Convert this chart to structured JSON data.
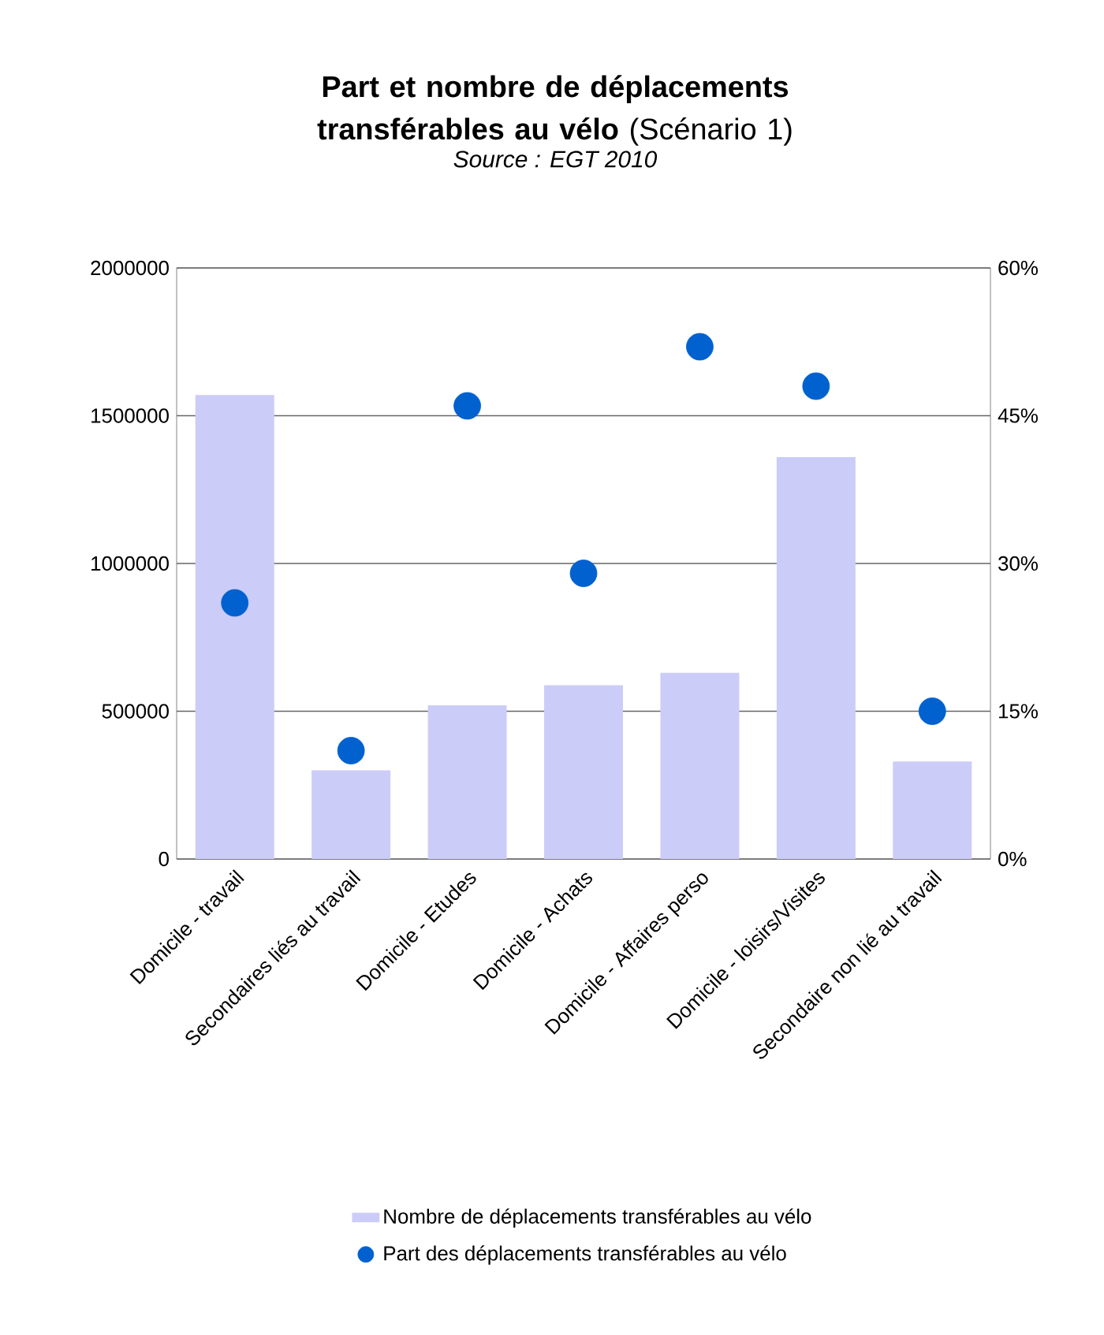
{
  "chart_data": {
    "type": "bar",
    "title": "**Part et nombre de déplacements transférables au vélo** (Scénario 1)",
    "subtitle": "Source : EGT 2010",
    "categories": [
      "Domicile - travail",
      "Secondaires liés au travail",
      "Domicile - Etudes",
      "Domicile - Achats",
      "Domicile - Affaires perso",
      "Domicile - loisirs/Visites",
      "Secondaire non lié au travail"
    ],
    "series": [
      {
        "name": "Nombre de déplacements transférables au vélo",
        "color": "#ccccf9",
        "values": [
          1570000,
          300000,
          520000,
          588000,
          630000,
          1360000,
          330000
        ]
      },
      {
        "name": "Part des déplacements transférables au vélo",
        "type": "scatter",
        "axis": "y2",
        "color": "#0061cf",
        "values": [
          26,
          11,
          46,
          29,
          52,
          48,
          15
        ]
      }
    ],
    "ylim": [
      0,
      2000000
    ],
    "yticks": [
      0,
      500000,
      1000000,
      1500000,
      2000000
    ],
    "y2lim": [
      0,
      60
    ],
    "y2ticks": [
      {
        "value": 0,
        "label": "0%"
      },
      {
        "value": 15,
        "label": "15%"
      },
      {
        "value": 30,
        "label": "30%"
      },
      {
        "value": 45,
        "label": "45%"
      },
      {
        "value": 60,
        "label": "60%"
      }
    ],
    "grid": "y",
    "legend": "bottom"
  }
}
